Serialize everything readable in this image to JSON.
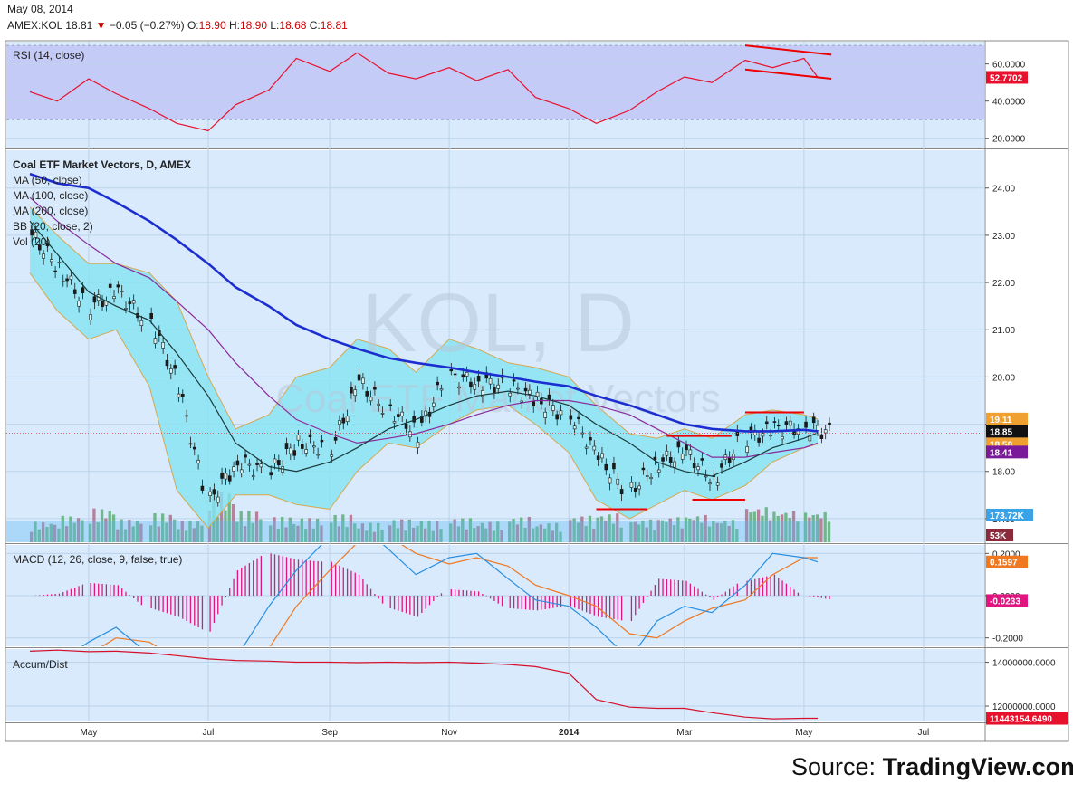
{
  "header": {
    "date": "May 08, 2014",
    "symbol": "AMEX:KOL",
    "last": "18.81",
    "change": "−0.05 (−0.27%)",
    "open_label": "O:",
    "open": "18.90",
    "high_label": "H:",
    "high": "18.90",
    "low_label": "L:",
    "low": "18.68",
    "close_label": "C:",
    "close": "18.81"
  },
  "watermark": {
    "ticker": "KOL, D",
    "name": "Coal ETF Market Vectors"
  },
  "source": {
    "prefix": "Source: ",
    "site": "TradingView.com"
  },
  "colors": {
    "plot_bg": "#d8eafc",
    "rsi_band": "#c5cbf7",
    "bb_fill": "#86e3f2",
    "bb_line": "#d6a84a",
    "ma50": "#1a3a3a",
    "ma100": "#2e3a8c",
    "ma200": "#8a2a9a",
    "rsi_line": "#e8112d",
    "macd_line": "#2a8fe0",
    "signal_line": "#f07820",
    "hist": "#e0157f",
    "accum": "#d6102a",
    "trend": "#ee0000",
    "vol_ma": "#5ab7f0",
    "candle_up": "#d8f5f0",
    "candle_edge": "#1a1a1a",
    "last_price": "#111111"
  },
  "chart_data": [
    {
      "pane": "rsi",
      "type": "line",
      "title": "RSI (14, close)",
      "band": [
        30,
        70
      ],
      "ylim": [
        15,
        72
      ],
      "yticks": [
        "60.0000",
        "40.0000",
        "20.0000"
      ],
      "yticks_values": [
        60,
        40,
        20
      ],
      "last_label": "52.7702",
      "last_value": 52.77,
      "x": [
        "2013-04-01",
        "2013-04-15",
        "2013-05-01",
        "2013-05-15",
        "2013-06-01",
        "2013-06-15",
        "2013-07-01",
        "2013-07-15",
        "2013-08-01",
        "2013-08-15",
        "2013-09-01",
        "2013-09-15",
        "2013-10-01",
        "2013-10-15",
        "2013-11-01",
        "2013-11-15",
        "2013-12-01",
        "2013-12-15",
        "2014-01-01",
        "2014-01-15",
        "2014-02-01",
        "2014-02-15",
        "2014-03-01",
        "2014-03-15",
        "2014-04-01",
        "2014-04-15",
        "2014-05-01",
        "2014-05-08"
      ],
      "values": [
        45,
        40,
        52,
        44,
        36,
        28,
        24,
        38,
        46,
        63,
        56,
        66,
        55,
        52,
        58,
        51,
        57,
        42,
        36,
        28,
        35,
        45,
        53,
        50,
        62,
        58,
        63,
        52.8
      ],
      "trendlines": [
        {
          "x": [
            "2014-04-01",
            "2014-05-15"
          ],
          "y": [
            70,
            65
          ]
        },
        {
          "x": [
            "2014-04-01",
            "2014-05-15"
          ],
          "y": [
            57,
            52
          ]
        }
      ]
    },
    {
      "pane": "price",
      "type": "candlestick",
      "legend": [
        "Coal ETF Market Vectors, D, AMEX",
        "MA (50, close)",
        "MA (100, close)",
        "MA (200, close)",
        "BB (20, close, 2)",
        "Vol (20)"
      ],
      "ylim": [
        16.5,
        24.8
      ],
      "yticks": [
        "24.00",
        "23.00",
        "22.00",
        "21.00",
        "20.00",
        "19.00",
        "18.00",
        "17.00"
      ],
      "yticks_values": [
        24,
        23,
        22,
        21,
        20,
        19,
        18,
        17
      ],
      "x": [
        "2013-04-01",
        "2013-04-15",
        "2013-05-01",
        "2013-05-15",
        "2013-06-01",
        "2013-06-15",
        "2013-07-01",
        "2013-07-15",
        "2013-08-01",
        "2013-08-15",
        "2013-09-01",
        "2013-09-15",
        "2013-10-01",
        "2013-10-15",
        "2013-11-01",
        "2013-11-15",
        "2013-12-01",
        "2013-12-15",
        "2014-01-01",
        "2014-01-15",
        "2014-02-01",
        "2014-02-15",
        "2014-03-01",
        "2014-03-15",
        "2014-04-01",
        "2014-04-15",
        "2014-05-01",
        "2014-05-08"
      ],
      "close": [
        23.0,
        22.3,
        21.5,
        21.8,
        21.2,
        19.8,
        17.4,
        18.2,
        18.0,
        18.6,
        18.5,
        19.9,
        19.3,
        18.8,
        20.0,
        19.9,
        19.8,
        19.5,
        19.2,
        18.3,
        17.6,
        18.2,
        18.4,
        17.8,
        18.7,
        18.9,
        18.95,
        18.81
      ],
      "ma50": [
        23.3,
        22.6,
        21.8,
        21.5,
        21.2,
        20.5,
        19.6,
        18.6,
        18.1,
        18.0,
        18.2,
        18.5,
        18.9,
        19.1,
        19.4,
        19.6,
        19.7,
        19.6,
        19.4,
        19.0,
        18.6,
        18.2,
        18.0,
        17.9,
        18.2,
        18.5,
        18.7,
        18.82
      ],
      "ma100": [
        23.8,
        23.3,
        22.8,
        22.4,
        22.1,
        21.6,
        21.0,
        20.3,
        19.6,
        19.1,
        18.8,
        18.6,
        18.7,
        18.8,
        19.0,
        19.2,
        19.4,
        19.5,
        19.5,
        19.4,
        19.2,
        18.9,
        18.6,
        18.3,
        18.3,
        18.4,
        18.5,
        18.6
      ],
      "ma200": [
        24.3,
        24.1,
        24.0,
        23.7,
        23.3,
        22.9,
        22.4,
        21.9,
        21.5,
        21.1,
        20.8,
        20.6,
        20.4,
        20.3,
        20.2,
        20.1,
        20.0,
        19.9,
        19.8,
        19.6,
        19.4,
        19.2,
        19.0,
        18.9,
        18.85,
        18.85,
        18.88,
        18.85
      ],
      "bb_upper": [
        23.6,
        23.0,
        22.4,
        22.4,
        22.2,
        21.6,
        20.0,
        18.9,
        19.2,
        20.0,
        20.2,
        20.8,
        20.6,
        20.1,
        20.8,
        20.6,
        20.3,
        20.2,
        20.0,
        19.4,
        18.8,
        18.7,
        18.9,
        18.7,
        19.2,
        19.3,
        19.2,
        19.11
      ],
      "bb_lower": [
        22.2,
        21.4,
        20.8,
        21.0,
        19.8,
        17.6,
        16.8,
        17.5,
        17.5,
        17.3,
        17.2,
        18.0,
        18.6,
        18.5,
        19.0,
        19.3,
        19.4,
        19.0,
        18.4,
        17.4,
        17.0,
        17.3,
        17.6,
        17.4,
        17.7,
        18.2,
        18.5,
        18.58
      ],
      "h_levels": [
        {
          "x": [
            "2014-01-15",
            "2014-02-10"
          ],
          "y": 17.2
        },
        {
          "x": [
            "2014-02-20",
            "2014-03-25"
          ],
          "y": 18.75
        },
        {
          "x": [
            "2014-03-05",
            "2014-04-01"
          ],
          "y": 17.4
        },
        {
          "x": [
            "2014-04-01",
            "2014-05-01"
          ],
          "y": 19.25
        }
      ],
      "last_labels": [
        {
          "label": "19.11",
          "value": 19.11,
          "color": "#f0a030"
        },
        {
          "label": "18.85",
          "value": 18.85,
          "color": "#111111"
        },
        {
          "label": "18.58",
          "value": 18.58,
          "color": "#f0a030"
        },
        {
          "label": "18.41",
          "value": 18.41,
          "color": "#7a1a9a"
        }
      ],
      "volume": {
        "values_k": [
          170,
          220,
          280,
          190,
          240,
          180,
          420,
          260,
          210,
          200,
          230,
          160,
          190,
          180,
          200,
          170,
          210,
          160,
          220,
          240,
          190,
          210,
          230,
          190,
          300,
          270,
          260,
          53
        ],
        "last_vol_label": "53K",
        "vol_ma_label": "173.72K",
        "vol_ma_k": 173.72
      }
    },
    {
      "pane": "macd",
      "type": "line",
      "title": "MACD (12, 26, close, 9, false, true)",
      "ylim": [
        -0.24,
        0.24
      ],
      "yticks": [
        "0.2000",
        "0.0000",
        "-0.2000"
      ],
      "yticks_values": [
        0.2,
        0.0,
        -0.2
      ],
      "x": [
        "2013-04-01",
        "2013-04-15",
        "2013-05-01",
        "2013-05-15",
        "2013-06-01",
        "2013-06-15",
        "2013-07-01",
        "2013-07-15",
        "2013-08-01",
        "2013-08-15",
        "2013-09-01",
        "2013-09-15",
        "2013-10-01",
        "2013-10-15",
        "2013-11-01",
        "2013-11-15",
        "2013-12-01",
        "2013-12-15",
        "2014-01-01",
        "2014-01-15",
        "2014-02-01",
        "2014-02-15",
        "2014-03-01",
        "2014-03-15",
        "2014-04-01",
        "2014-04-15",
        "2014-05-01",
        "2014-05-08"
      ],
      "series": [
        {
          "name": "MACD",
          "values": [
            -0.3,
            -0.32,
            -0.22,
            -0.15,
            -0.28,
            -0.4,
            -0.62,
            -0.3,
            -0.05,
            0.12,
            0.28,
            0.35,
            0.22,
            0.1,
            0.18,
            0.2,
            0.08,
            -0.02,
            -0.05,
            -0.15,
            -0.3,
            -0.12,
            -0.05,
            -0.08,
            0.05,
            0.2,
            0.18,
            0.16
          ]
        },
        {
          "name": "Signal",
          "values": [
            -0.3,
            -0.33,
            -0.28,
            -0.2,
            -0.22,
            -0.3,
            -0.45,
            -0.42,
            -0.25,
            -0.05,
            0.12,
            0.25,
            0.28,
            0.2,
            0.15,
            0.18,
            0.14,
            0.05,
            0.0,
            -0.05,
            -0.18,
            -0.2,
            -0.12,
            -0.06,
            -0.02,
            0.1,
            0.18,
            0.18
          ]
        },
        {
          "name": "Histogram",
          "values": [
            0.0,
            0.01,
            0.06,
            0.05,
            -0.06,
            -0.1,
            -0.17,
            0.12,
            0.2,
            0.17,
            0.16,
            0.1,
            -0.06,
            -0.1,
            0.03,
            0.02,
            -0.06,
            -0.07,
            -0.05,
            -0.1,
            -0.12,
            0.08,
            0.07,
            -0.02,
            0.07,
            0.1,
            0.0,
            -0.02
          ]
        }
      ],
      "last_labels": [
        {
          "label": "0.1597",
          "value": 0.1597,
          "color": "#f07820"
        },
        {
          "label": "-0.0233",
          "value": -0.0233,
          "color": "#e0157f"
        }
      ]
    },
    {
      "pane": "accum",
      "type": "line",
      "title": "Accum/Dist",
      "ylim": [
        11300000,
        14600000
      ],
      "yticks": [
        "14000000.0000",
        "12000000.0000"
      ],
      "yticks_values": [
        14000000,
        12000000
      ],
      "x": [
        "2013-04-01",
        "2013-04-15",
        "2013-05-01",
        "2013-05-15",
        "2013-06-01",
        "2013-06-15",
        "2013-07-01",
        "2013-07-15",
        "2013-08-01",
        "2013-08-15",
        "2013-09-01",
        "2013-09-15",
        "2013-10-01",
        "2013-10-15",
        "2013-11-01",
        "2013-11-15",
        "2013-12-01",
        "2013-12-15",
        "2014-01-01",
        "2014-01-15",
        "2014-02-01",
        "2014-02-15",
        "2014-03-01",
        "2014-03-15",
        "2014-04-01",
        "2014-04-15",
        "2014-05-01",
        "2014-05-08"
      ],
      "values": [
        14500000,
        14550000,
        14480000,
        14500000,
        14420000,
        14300000,
        14150000,
        14080000,
        14050000,
        14000000,
        14000000,
        13980000,
        14000000,
        13980000,
        14000000,
        13960000,
        13900000,
        13800000,
        13500000,
        12300000,
        11950000,
        11900000,
        11900000,
        11700000,
        11500000,
        11420000,
        11443154,
        11443154
      ],
      "last_label": "11443154.6490",
      "last_value": 11443154.649
    }
  ],
  "time_axis": {
    "labels": [
      "May",
      "Jul",
      "Sep",
      "Nov",
      "2014",
      "Mar",
      "May",
      "Jul"
    ],
    "label_dates": [
      "2013-05-01",
      "2013-07-01",
      "2013-09-01",
      "2013-11-01",
      "2014-01-01",
      "2014-03-01",
      "2014-05-01",
      "2014-07-01"
    ],
    "start": "2013-03-20",
    "end": "2014-08-01"
  }
}
